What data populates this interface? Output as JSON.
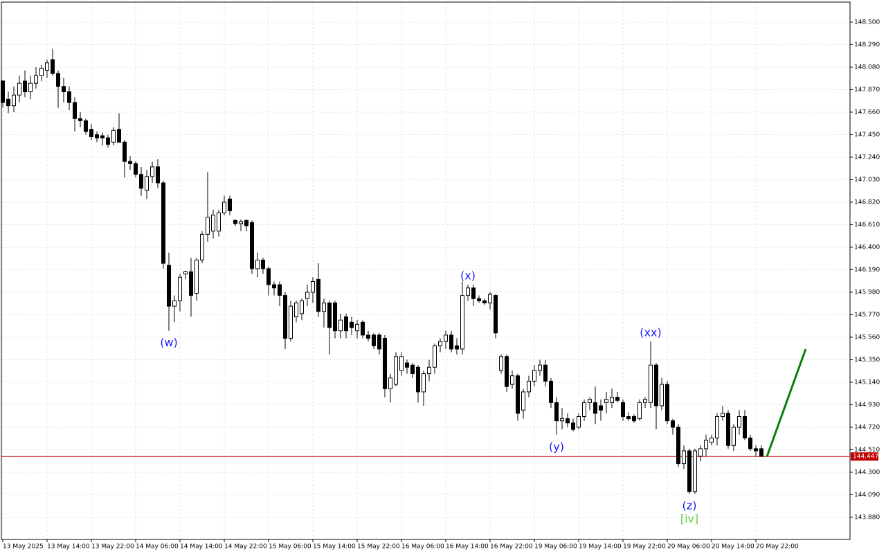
{
  "chart_data": {
    "type": "candlestick",
    "categories": [
      "13 May 2025",
      null,
      null,
      null,
      null,
      null,
      null,
      null,
      "13 May 14:00",
      null,
      null,
      null,
      null,
      null,
      null,
      null,
      "13 May 22:00",
      null,
      null,
      null,
      null,
      null,
      null,
      null,
      "14 May 06:00",
      null,
      null,
      null,
      null,
      null,
      null,
      null,
      "14 May 14:00",
      null,
      null,
      null,
      null,
      null,
      null,
      null,
      "14 May 22:00",
      null,
      null,
      null,
      null,
      null,
      null,
      null,
      "15 May 06:00",
      null,
      null,
      null,
      null,
      null,
      null,
      null,
      "15 May 14:00",
      null,
      null,
      null,
      null,
      null,
      null,
      null,
      "15 May 22:00",
      null,
      null,
      null,
      null,
      null,
      null,
      null,
      "16 May 06:00",
      null,
      null,
      null,
      null,
      null,
      null,
      null,
      "16 May 14:00",
      null,
      null,
      null,
      null,
      null,
      null,
      null,
      "16 May 22:00",
      null,
      null,
      null,
      null,
      null,
      null,
      null,
      "19 May 06:00",
      null,
      null,
      null,
      null,
      null,
      null,
      null,
      "19 May 14:00",
      null,
      null,
      null,
      null,
      null,
      null,
      null,
      "19 May 22:00",
      null,
      null,
      null,
      null,
      null,
      null,
      null,
      "20 May 06:00",
      null,
      null,
      null,
      null,
      null,
      null,
      null,
      "20 May 14:00",
      null,
      null,
      null,
      null,
      null,
      null,
      null,
      "20 May 22:00",
      null
    ],
    "open": [
      147.95,
      147.78,
      147.72,
      147.82,
      147.95,
      147.85,
      147.93,
      148.0,
      148.05,
      148.15,
      148.02,
      147.9,
      147.85,
      147.75,
      147.6,
      147.58,
      147.5,
      147.45,
      147.44,
      147.42,
      147.38,
      147.5,
      147.38,
      147.2,
      147.18,
      147.08,
      146.93,
      147.06,
      147.15,
      147.0,
      146.23,
      145.85,
      145.9,
      146.15,
      146.17,
      145.97,
      146.28,
      146.52,
      146.55,
      146.55,
      146.72,
      146.85,
      146.65,
      146.62,
      146.65,
      146.63,
      146.2,
      146.28,
      146.2,
      146.05,
      146.05,
      145.95,
      145.55,
      145.75,
      145.78,
      145.92,
      145.98,
      146.1,
      145.8,
      145.88,
      145.88,
      145.62,
      145.75,
      145.7,
      145.62,
      145.7,
      145.58,
      145.58,
      145.58,
      145.55,
      145.08,
      145.12,
      145.25,
      145.32,
      145.3,
      145.28,
      145.05,
      145.22,
      145.28,
      145.48,
      145.52,
      145.58,
      145.48,
      145.45,
      145.95,
      146.02,
      145.92,
      145.9,
      145.88,
      145.95,
      145.25,
      145.38,
      145.12,
      145.2,
      144.88,
      145.05,
      145.15,
      145.25,
      145.3,
      145.15,
      144.95,
      144.78,
      144.8,
      144.76,
      144.72,
      144.82,
      144.95,
      144.95,
      144.92,
      144.95,
      144.95,
      145.0,
      144.95,
      144.82,
      144.82,
      144.8,
      144.95,
      144.95,
      145.3,
      144.92,
      145.12,
      144.78,
      144.72,
      144.38,
      144.5,
      144.12,
      144.45,
      144.52,
      144.58,
      144.62,
      144.82,
      144.85,
      144.55,
      144.72,
      144.82,
      144.62,
      144.52,
      144.52
    ],
    "high": [
      147.96,
      147.85,
      147.9,
      148.0,
      148.05,
      148.0,
      148.08,
      148.1,
      148.15,
      148.25,
      148.05,
      147.98,
      147.9,
      147.8,
      147.66,
      147.6,
      147.55,
      147.48,
      147.47,
      147.45,
      147.52,
      147.65,
      147.4,
      147.25,
      147.2,
      147.15,
      147.12,
      147.2,
      147.22,
      147.02,
      146.35,
      145.95,
      146.15,
      146.18,
      146.3,
      146.3,
      146.55,
      147.1,
      146.75,
      146.75,
      146.88,
      146.88,
      146.66,
      146.66,
      146.66,
      146.65,
      146.35,
      146.3,
      146.22,
      146.08,
      146.08,
      145.98,
      145.9,
      145.9,
      145.92,
      146.05,
      146.12,
      146.25,
      145.92,
      145.9,
      145.9,
      145.78,
      145.78,
      145.75,
      145.72,
      145.72,
      145.62,
      145.6,
      145.6,
      145.58,
      145.22,
      145.42,
      145.42,
      145.35,
      145.32,
      145.3,
      145.25,
      145.35,
      145.5,
      145.55,
      145.62,
      145.62,
      145.55,
      146.08,
      146.05,
      146.05,
      145.95,
      145.92,
      145.98,
      145.96,
      145.4,
      145.4,
      145.25,
      145.22,
      145.08,
      145.2,
      145.3,
      145.35,
      145.35,
      145.18,
      145.0,
      144.9,
      144.85,
      144.8,
      144.85,
      144.98,
      145.0,
      145.1,
      144.98,
      145.05,
      145.08,
      145.05,
      144.98,
      144.86,
      144.84,
      144.98,
      145.0,
      145.52,
      145.32,
      145.18,
      145.15,
      144.8,
      144.75,
      144.55,
      144.52,
      144.52,
      144.55,
      144.65,
      144.65,
      144.85,
      144.92,
      144.88,
      144.75,
      144.88,
      144.88,
      144.65,
      144.55,
      144.55
    ],
    "low": [
      147.7,
      147.65,
      147.66,
      147.75,
      147.8,
      147.78,
      147.88,
      147.95,
      147.98,
      148.0,
      147.7,
      147.75,
      147.68,
      147.48,
      147.52,
      147.45,
      147.4,
      147.38,
      147.35,
      147.33,
      147.35,
      147.38,
      147.05,
      147.12,
      147.05,
      146.88,
      146.85,
      147.0,
      146.95,
      146.2,
      145.62,
      145.7,
      145.8,
      146.1,
      145.75,
      145.9,
      146.25,
      146.45,
      146.48,
      146.5,
      146.7,
      146.7,
      146.6,
      146.55,
      146.55,
      146.15,
      146.12,
      146.15,
      145.95,
      145.95,
      145.85,
      145.45,
      145.52,
      145.7,
      145.72,
      145.85,
      145.88,
      145.75,
      145.65,
      145.4,
      145.55,
      145.55,
      145.55,
      145.58,
      145.55,
      145.55,
      145.52,
      145.45,
      145.4,
      145.0,
      144.95,
      145.1,
      145.2,
      145.22,
      145.18,
      144.95,
      144.92,
      145.15,
      145.22,
      145.42,
      145.45,
      145.42,
      145.4,
      145.4,
      145.9,
      145.85,
      145.88,
      145.86,
      145.82,
      145.55,
      145.22,
      145.05,
      145.08,
      144.78,
      144.8,
      145.0,
      145.1,
      145.2,
      145.1,
      144.9,
      144.65,
      144.7,
      144.72,
      144.68,
      144.7,
      144.78,
      144.88,
      144.75,
      144.78,
      144.85,
      144.9,
      144.95,
      144.78,
      144.78,
      144.76,
      144.78,
      144.9,
      144.9,
      144.7,
      144.88,
      144.75,
      144.65,
      144.35,
      144.33,
      144.1,
      144.1,
      144.4,
      144.45,
      144.55,
      144.55,
      144.78,
      144.52,
      144.5,
      144.65,
      144.6,
      144.5,
      144.45,
      144.45
    ],
    "close": [
      147.75,
      147.72,
      147.82,
      147.93,
      147.85,
      147.93,
      148.0,
      148.07,
      148.12,
      148.02,
      147.9,
      147.85,
      147.75,
      147.6,
      147.58,
      147.48,
      147.43,
      147.42,
      147.42,
      147.36,
      147.49,
      147.38,
      147.2,
      147.18,
      147.08,
      146.95,
      147.06,
      147.15,
      147.0,
      146.25,
      145.85,
      145.9,
      146.12,
      146.17,
      145.95,
      146.28,
      146.52,
      146.68,
      146.7,
      146.72,
      146.82,
      146.74,
      146.62,
      146.64,
      146.6,
      146.2,
      146.28,
      146.2,
      146.05,
      146.02,
      145.95,
      145.55,
      145.85,
      145.88,
      145.9,
      145.98,
      146.08,
      145.8,
      145.88,
      145.65,
      145.62,
      145.72,
      145.62,
      145.65,
      145.68,
      145.58,
      145.55,
      145.48,
      145.45,
      145.08,
      145.18,
      145.38,
      145.38,
      145.28,
      145.22,
      145.05,
      145.22,
      145.28,
      145.48,
      145.52,
      145.58,
      145.45,
      145.45,
      145.95,
      146.02,
      145.92,
      145.9,
      145.88,
      145.96,
      145.6,
      145.38,
      145.1,
      145.2,
      144.85,
      145.05,
      145.15,
      145.25,
      145.3,
      145.15,
      144.95,
      144.78,
      144.8,
      144.76,
      144.7,
      144.82,
      144.95,
      144.98,
      144.85,
      144.88,
      144.98,
      145.0,
      144.97,
      144.82,
      144.8,
      144.78,
      144.95,
      144.98,
      145.3,
      144.92,
      145.12,
      144.78,
      144.72,
      144.38,
      144.5,
      144.12,
      144.5,
      144.52,
      144.6,
      144.62,
      144.82,
      144.85,
      144.55,
      144.72,
      144.82,
      144.62,
      144.52,
      144.5,
      144.45
    ],
    "up_color": "#ffffff",
    "down_color": "#000000",
    "ylim": [
      143.673,
      148.687
    ],
    "yticks": [
      {
        "value": 148.5,
        "label": "148.500"
      },
      {
        "value": 148.29,
        "label": "148.290"
      },
      {
        "value": 148.08,
        "label": "148.080"
      },
      {
        "value": 147.87,
        "label": "147.870"
      },
      {
        "value": 147.66,
        "label": "147.660"
      },
      {
        "value": 147.45,
        "label": "147.450"
      },
      {
        "value": 147.24,
        "label": "147.240"
      },
      {
        "value": 147.03,
        "label": "147.030"
      },
      {
        "value": 146.82,
        "label": "146.820"
      },
      {
        "value": 146.61,
        "label": "146.610"
      },
      {
        "value": 146.4,
        "label": "146.400"
      },
      {
        "value": 146.19,
        "label": "146.190"
      },
      {
        "value": 145.98,
        "label": "145.980"
      },
      {
        "value": 145.77,
        "label": "145.770"
      },
      {
        "value": 145.56,
        "label": "145.560"
      },
      {
        "value": 145.35,
        "label": "145.350"
      },
      {
        "value": 145.14,
        "label": "145.140"
      },
      {
        "value": 144.93,
        "label": "144.930"
      },
      {
        "value": 144.72,
        "label": "144.720"
      },
      {
        "value": 144.51,
        "label": "144.510"
      },
      {
        "value": 144.3,
        "label": "144.300"
      },
      {
        "value": 144.09,
        "label": "144.090"
      },
      {
        "value": 143.88,
        "label": "143.880"
      }
    ],
    "grid": true,
    "current_price": {
      "value": 144.447,
      "color": "#c00000"
    },
    "projection": {
      "at": [
        138,
        145
      ],
      "values": [
        144.447,
        145.45
      ],
      "color": "#0a7d0a"
    },
    "annotations": [
      {
        "text": "(w)",
        "at": 30,
        "side": "low",
        "color": "#1a1aff"
      },
      {
        "text": "(x)",
        "at": 84,
        "side": "high",
        "color": "#1a1aff"
      },
      {
        "text": "(y)",
        "at": 100,
        "side": "low",
        "color": "#1a1aff"
      },
      {
        "text": "(xx)",
        "at": 117,
        "side": "high",
        "color": "#1a1aff"
      },
      {
        "text": "(z)",
        "at": 124,
        "side": "low",
        "color": "#1a1aff"
      },
      {
        "text": "[iv]",
        "at": 124,
        "side": "low",
        "color": "#66cc44"
      }
    ]
  }
}
